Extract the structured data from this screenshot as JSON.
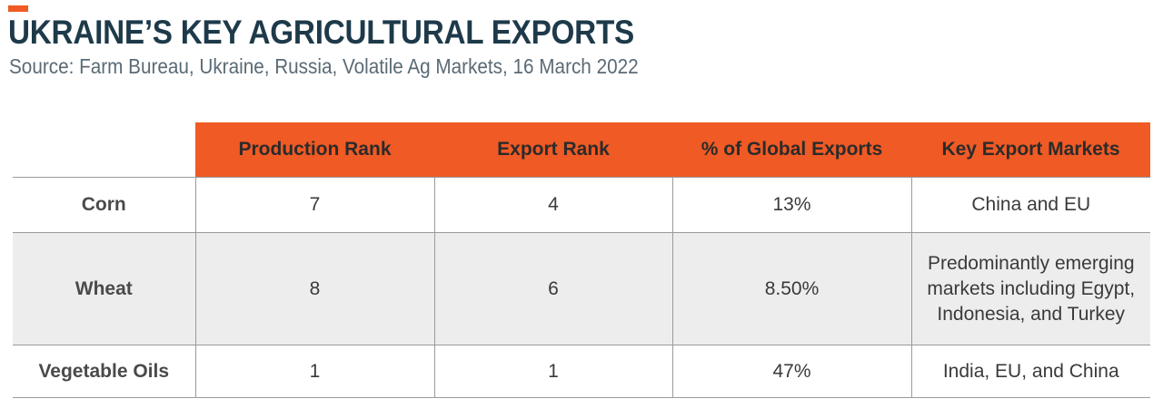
{
  "header": {
    "title": "UKRAINE’S KEY AGRICULTURAL EXPORTS",
    "subtitle": "Source: Farm Bureau, Ukraine, Russia, Volatile Ag Markets, 16 March 2022"
  },
  "colors": {
    "accent": "#f05a24",
    "title": "#1e3a4a",
    "row_shade": "#ededed"
  },
  "table": {
    "columns": [
      "",
      "Production Rank",
      "Export Rank",
      "% of Global Exports",
      "Key Export Markets"
    ],
    "rows": [
      {
        "commodity": "Corn",
        "production_rank": "7",
        "export_rank": "4",
        "global_share": "13%",
        "markets": "China and EU"
      },
      {
        "commodity": "Wheat",
        "production_rank": "8",
        "export_rank": "6",
        "global_share": "8.50%",
        "markets": "Predominantly emerging markets including Egypt, Indonesia, and Turkey"
      },
      {
        "commodity": "Vegetable Oils",
        "production_rank": "1",
        "export_rank": "1",
        "global_share": "47%",
        "markets": "India, EU, and China"
      }
    ]
  }
}
